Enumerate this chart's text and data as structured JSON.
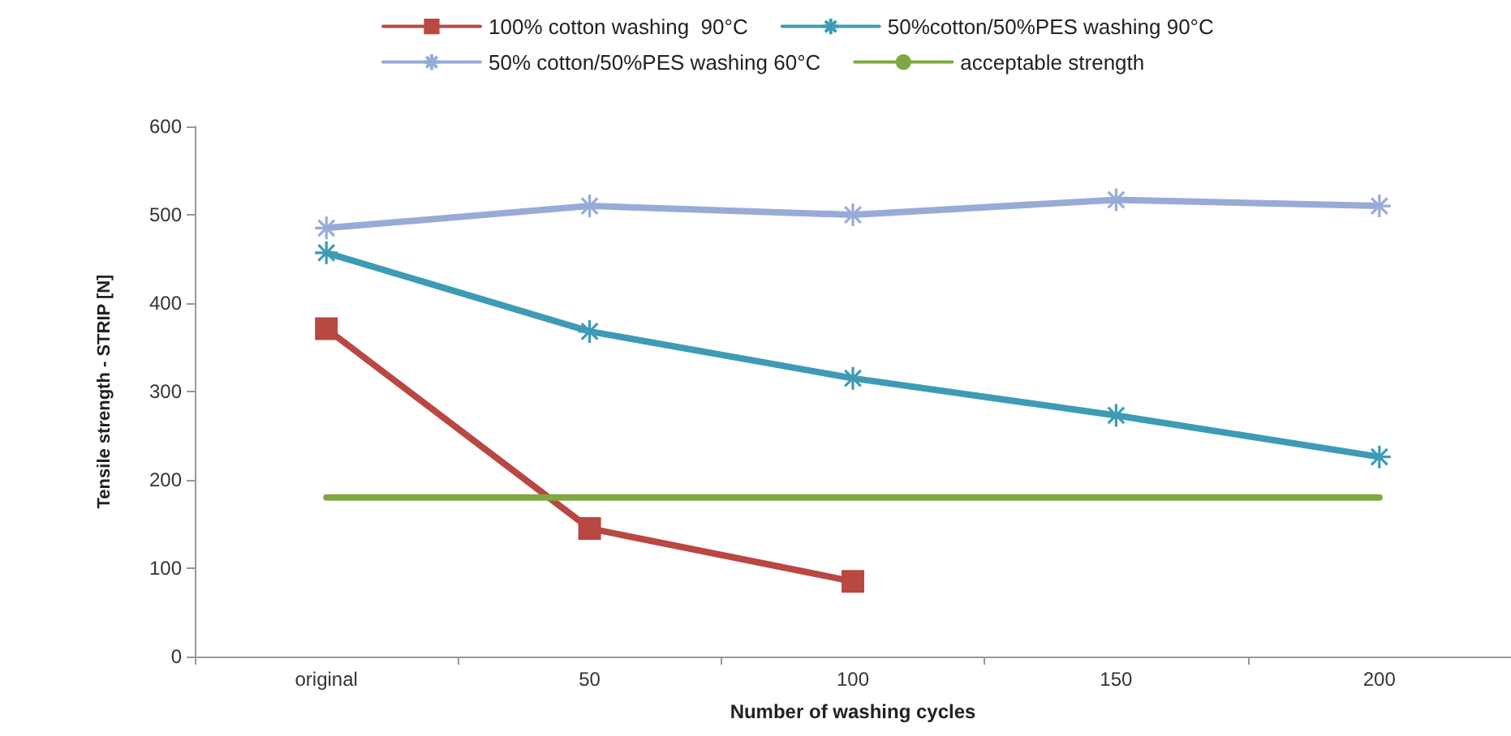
{
  "chart_data": {
    "type": "line",
    "xlabel": "Number of washing cycles",
    "ylabel": "Tensile strength - STRIP [N]",
    "categories": [
      "original",
      "50",
      "100",
      "150",
      "200"
    ],
    "series": [
      {
        "name": "100% cotton washing  90°C",
        "color": "#b94742",
        "marker": "square",
        "values": [
          371,
          145,
          85,
          null,
          null
        ]
      },
      {
        "name": "50%cotton/50%PES washing 90°C",
        "color": "#3d9bb5",
        "marker": "cross",
        "values": [
          457,
          368,
          315,
          273,
          226
        ]
      },
      {
        "name": "50% cotton/50%PES washing 60°C",
        "color": "#98abd7",
        "marker": "cross",
        "values": [
          485,
          510,
          500,
          517,
          510
        ]
      },
      {
        "name": "acceptable strength",
        "color": "#7fa843",
        "marker": "none",
        "values": [
          180,
          180,
          180,
          180,
          180
        ]
      }
    ],
    "ylim": [
      0,
      600
    ],
    "yticks": [
      0,
      100,
      200,
      300,
      400,
      500,
      600
    ],
    "grid": false,
    "legend": "top",
    "line_style": "solid"
  }
}
